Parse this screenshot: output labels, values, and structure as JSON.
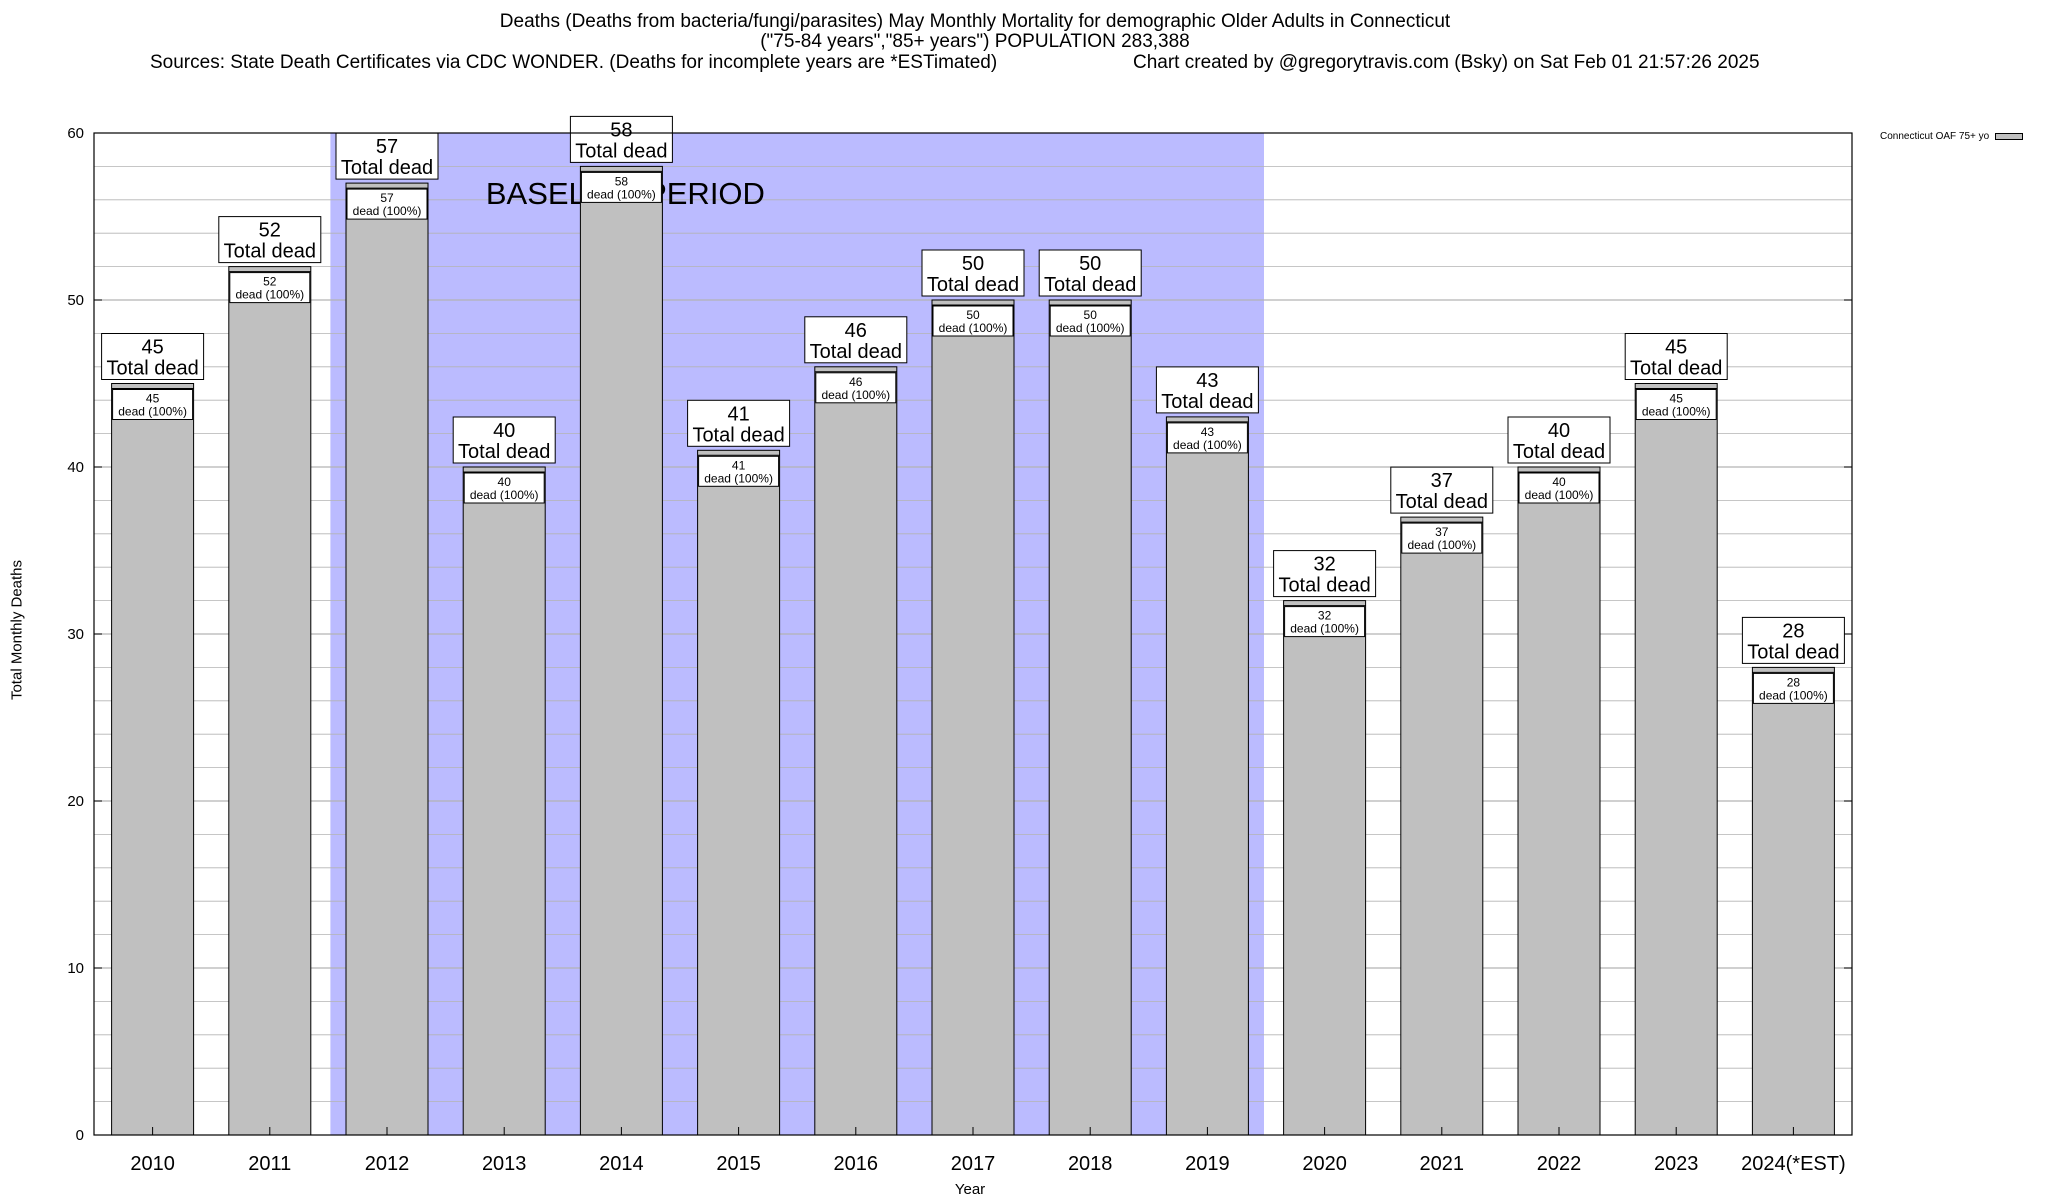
{
  "header": {
    "title_line1": "Deaths (Deaths from bacteria/fungi/parasites) May Monthly Mortality for demographic Older Adults in Connecticut",
    "title_line2": "(\"75-84 years\",\"85+ years\") POPULATION 283,388",
    "sources": "Sources: State Death Certificates via CDC WONDER. (Deaths for incomplete years are *ESTimated)",
    "credit": "Chart created by @gregorytravis.com (Bsky) on Sat Feb 01 21:57:26 2025"
  },
  "colors": {
    "bar_fill": "#c0c0c0",
    "baseline_fill": "#bbbbff",
    "grid": "#b4b4b4"
  },
  "chart_data": {
    "type": "bar",
    "categories": [
      "2010",
      "2011",
      "2012",
      "2013",
      "2014",
      "2015",
      "2016",
      "2017",
      "2018",
      "2019",
      "2020",
      "2021",
      "2022",
      "2023",
      "2024(*EST)"
    ],
    "series": [
      {
        "name": "Connecticut OAF 75+ yo",
        "values": [
          45,
          52,
          57,
          40,
          58,
          41,
          46,
          50,
          50,
          43,
          32,
          37,
          40,
          45,
          28
        ]
      }
    ],
    "xlabel": "Year",
    "ylabel": "Total Monthly Deaths",
    "ylim": [
      0,
      60
    ],
    "yticks": [
      0,
      10,
      20,
      30,
      40,
      50,
      60
    ],
    "grid": true,
    "legend_position": "top-right",
    "top_label_suffix": "Total dead",
    "inner_label_suffix": "dead (100%)",
    "shaded_region": {
      "label": "BASELINE PERIOD",
      "from_category": "2012",
      "to_category": "2019"
    }
  }
}
